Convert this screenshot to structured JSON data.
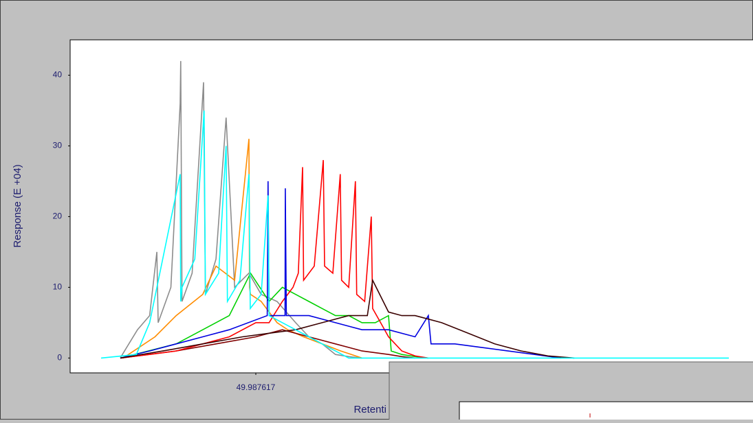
{
  "chart_data": {
    "type": "line",
    "y_label": "Response (E +04)",
    "x_label": "Retenti",
    "xlim": [
      -19.96,
      237.3
    ],
    "xticks": [
      {
        "value": 49.987617,
        "label": "49.987617"
      }
    ],
    "ylim": [
      -2.1,
      45
    ],
    "yticks": [
      0,
      10,
      20,
      30,
      40
    ],
    "series": [
      {
        "name": "gray",
        "color": "#8c8c8c",
        "x": [
          -1.1,
          5.4,
          10,
          12.7,
          13.2,
          18,
          21.5,
          21.7,
          22.2,
          26,
          30.3,
          30.5,
          31,
          35,
          38.8,
          42,
          47.4,
          52,
          58,
          65,
          70,
          75,
          80,
          85,
          90
        ],
        "values": [
          0,
          4,
          6,
          15,
          5,
          10,
          36,
          42,
          8,
          12,
          39,
          30,
          9,
          14,
          34,
          10,
          12,
          9,
          8,
          5,
          3,
          2,
          0.5,
          0.2,
          0
        ]
      },
      {
        "name": "orange",
        "color": "#ff8c00",
        "x": [
          0,
          12,
          20,
          30,
          35,
          42,
          47.4,
          47.6,
          48,
          52,
          58,
          62,
          68,
          75,
          82,
          90
        ],
        "values": [
          0,
          3,
          6,
          9,
          13,
          11,
          31,
          10,
          9,
          8,
          5,
          4,
          3,
          2,
          1,
          0
        ]
      },
      {
        "name": "dark red",
        "color": "#800000",
        "x": [
          -1,
          20,
          35,
          50,
          60,
          70,
          80,
          90,
          100,
          105,
          110
        ],
        "values": [
          0,
          1,
          2,
          3,
          4,
          3,
          2,
          1,
          0.5,
          0.2,
          0
        ]
      },
      {
        "name": "green",
        "color": "#00d000",
        "x": [
          -1,
          20,
          30,
          40,
          48,
          55,
          60,
          65,
          70,
          75,
          80,
          85,
          90,
          95,
          100,
          101,
          105,
          110,
          115
        ],
        "values": [
          0,
          2,
          4,
          6,
          12,
          8,
          10,
          9,
          8,
          7,
          6,
          6,
          5,
          5,
          6,
          1,
          0.5,
          0.2,
          0
        ]
      },
      {
        "name": "red",
        "color": "#ff0000",
        "x": [
          -1,
          10,
          20,
          30,
          40,
          50,
          55,
          60,
          64,
          66,
          67.6,
          68,
          72,
          75.4,
          75.9,
          79,
          81.8,
          82.3,
          85,
          87.5,
          88,
          91,
          93.5,
          94,
          97,
          100,
          105,
          110,
          115
        ],
        "values": [
          0,
          0.5,
          1,
          2,
          3,
          5,
          5,
          8,
          10,
          12,
          27,
          11,
          13,
          28,
          13,
          12,
          26,
          11,
          10,
          25,
          9,
          8,
          20,
          7,
          5,
          3,
          1,
          0.3,
          0
        ]
      },
      {
        "name": "blue",
        "color": "#0000e0",
        "x": [
          -1,
          10,
          20,
          30,
          40,
          54.3,
          54.6,
          55,
          61,
          61.1,
          61.5,
          70,
          80,
          90,
          100,
          110,
          115,
          116,
          125,
          135,
          145,
          155,
          165
        ],
        "values": [
          0,
          1,
          2,
          3,
          4,
          6,
          25,
          6,
          6,
          24,
          6,
          6,
          5,
          4,
          4,
          3,
          6,
          2,
          2,
          1.5,
          1,
          0.5,
          0
        ]
      },
      {
        "name": "dark brown",
        "color": "#3a0000",
        "x": [
          -1,
          15,
          30,
          45,
          55,
          65,
          75,
          85,
          92,
          94,
          100,
          105,
          110,
          115,
          120,
          130,
          140,
          150,
          160,
          170
        ],
        "values": [
          0,
          1,
          2,
          3,
          3.5,
          4,
          5,
          6,
          6,
          11,
          6.5,
          6,
          6,
          5.5,
          5,
          3.5,
          2,
          1,
          0.3,
          0
        ]
      },
      {
        "name": "cyan",
        "color": "#00ffff",
        "x": [
          -8.3,
          5,
          10,
          21.5,
          21.7,
          22.2,
          27,
          30.5,
          31,
          36,
          38.8,
          39.3,
          44,
          47.4,
          47.9,
          52,
          54.6,
          55,
          60,
          65,
          70,
          75,
          80,
          85,
          228.2
        ],
        "values": [
          0,
          0.5,
          5,
          26,
          8,
          10,
          14,
          35,
          9,
          12,
          30,
          8,
          11,
          26,
          7,
          9,
          23,
          6,
          5,
          4,
          3,
          2,
          1,
          0,
          0
        ]
      }
    ]
  }
}
